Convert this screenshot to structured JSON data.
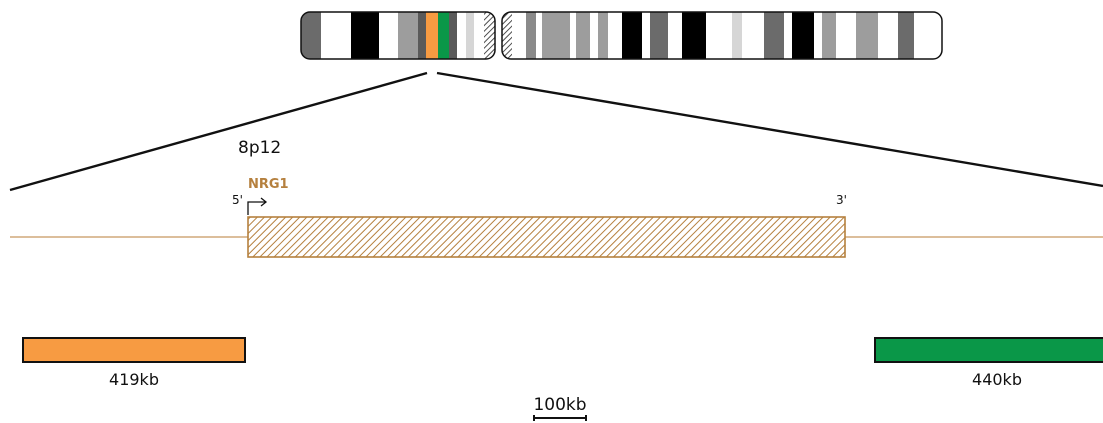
{
  "region_label": "8p12",
  "gene": {
    "name": "NRG1",
    "five_prime": "5'",
    "three_prime": "3'",
    "color": "#b5803e"
  },
  "left_segment": {
    "size_label": "419kb",
    "color": "#f79b42"
  },
  "right_segment": {
    "size_label": "440kb",
    "color": "#0a9748"
  },
  "scale_bar": {
    "label": "100kb"
  },
  "chromosome": {
    "highlight_colors": [
      "#f79b42",
      "#0a9748"
    ],
    "centromere_pattern": "hatched"
  }
}
